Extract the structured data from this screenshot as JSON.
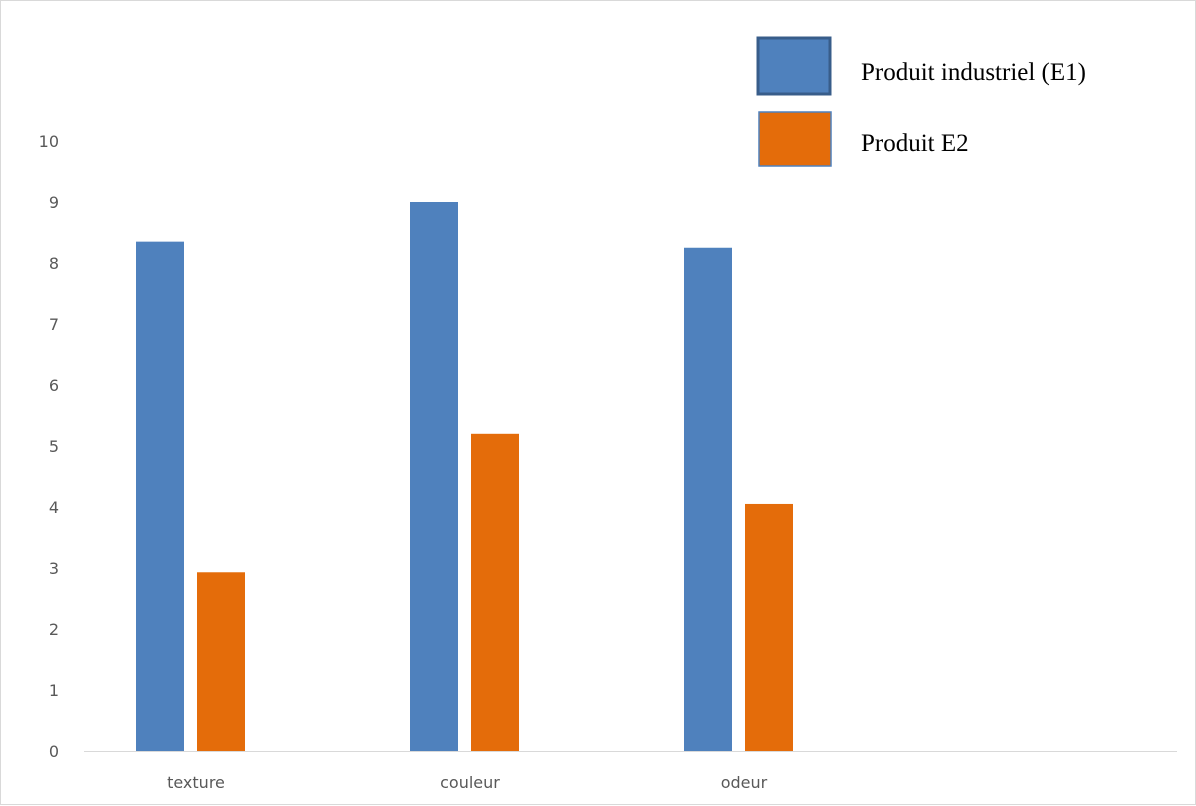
{
  "chart_data": {
    "type": "bar",
    "title": "",
    "xlabel": "",
    "ylabel": "",
    "categories": [
      "texture",
      "couleur",
      "odeur"
    ],
    "series": [
      {
        "name": "Produit industriel (E1)",
        "values": [
          8.35,
          9.0,
          8.25
        ],
        "color": "#4f81bd"
      },
      {
        "name": "Produit E2",
        "values": [
          2.93,
          5.2,
          4.05
        ],
        "color": "#e46c0a"
      }
    ],
    "ylim": [
      0,
      10
    ],
    "yticks": [
      "0",
      "1",
      "2",
      "3",
      "4",
      "5",
      "6",
      "7",
      "8",
      "9",
      "10"
    ],
    "grid": false,
    "legend_position": "top-right",
    "colors": {
      "axis_line": "#d9d9d9",
      "tick_text": "#595959",
      "legend_e1_border": "#385d8a",
      "legend_e2_border": "#4f81bd"
    }
  }
}
